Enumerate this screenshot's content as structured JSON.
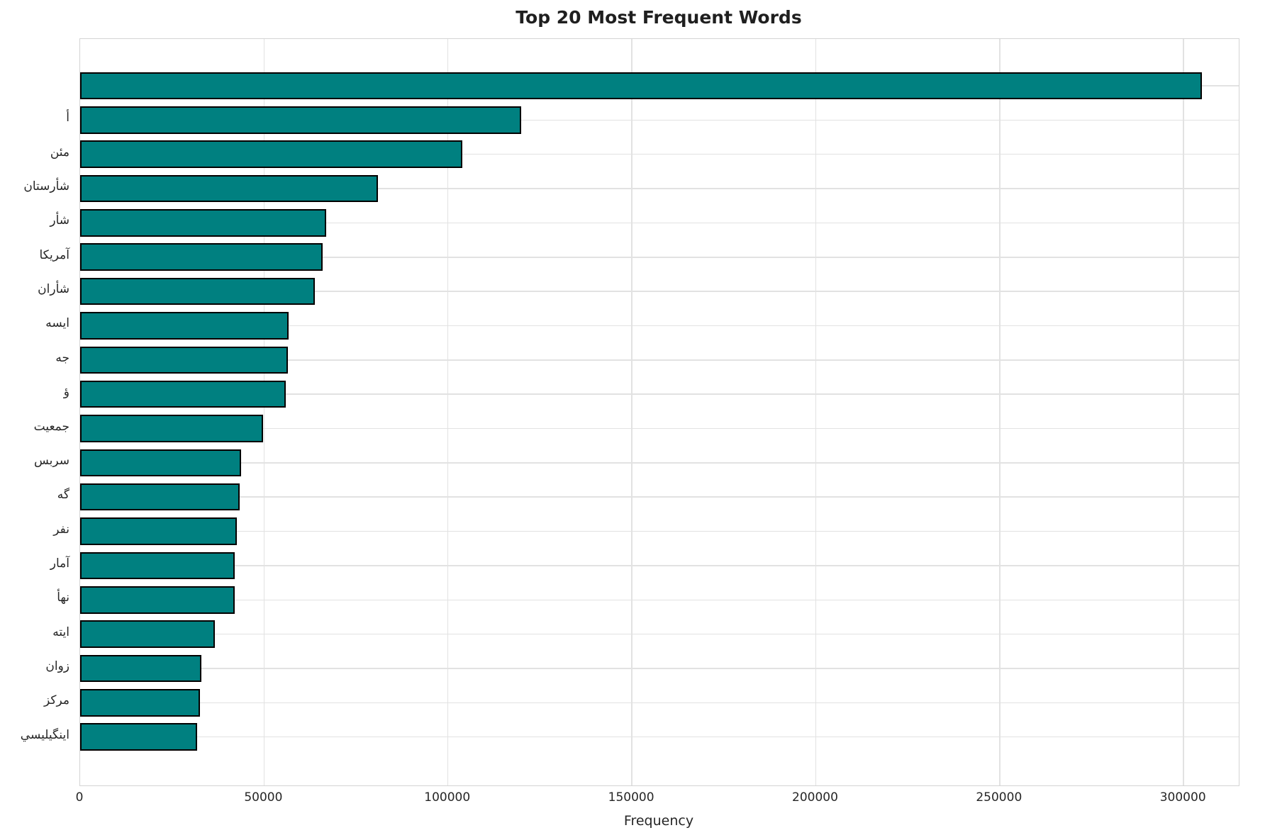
{
  "chart_data": {
    "type": "bar",
    "orientation": "horizontal",
    "title": "Top 20 Most Frequent Words",
    "xlabel": "Frequency",
    "ylabel": "",
    "categories": [
      "",
      "أ",
      "مئن",
      "شأرستان",
      "شأر",
      "آمريكا",
      "شأران",
      "ايسه",
      "جه",
      "ؤ",
      "جمعيت",
      "سربس",
      "گه",
      "نفر",
      "آمار",
      "نهأ",
      "ايته",
      "زوان",
      "مركز",
      "اينگيليسي"
    ],
    "values": [
      305000,
      120000,
      104000,
      81000,
      66800,
      66000,
      63800,
      56700,
      56400,
      56000,
      49700,
      43700,
      43300,
      42700,
      42100,
      42000,
      36700,
      32900,
      32600,
      31800
    ],
    "x_ticks": [
      0,
      50000,
      100000,
      150000,
      200000,
      250000,
      300000
    ],
    "xlim": [
      0,
      315000
    ],
    "grid": true,
    "legend": "none",
    "bar_color": "#008080",
    "bar_edge_color": "#000000",
    "grid_color": "#e2e2e2",
    "spine_color": "#d4d4d4",
    "text_color": "#262626"
  }
}
